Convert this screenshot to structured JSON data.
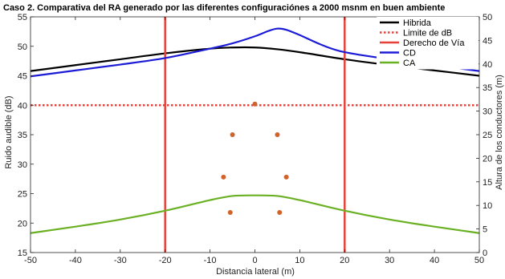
{
  "chart_data": {
    "type": "line",
    "title": "Caso 2. Comparativa del RA generado por las diferentes configuraciónes a 2000 msnm en buen ambiente",
    "xlabel": "Distancia lateral (m)",
    "ylabel": "Ruido audible (dB)",
    "y2label": "Altura de los conductores (m)",
    "xlim": [
      -50,
      50
    ],
    "ylim": [
      15,
      55
    ],
    "y2lim": [
      0,
      50
    ],
    "xticks": [
      -50,
      -40,
      -30,
      -20,
      -10,
      0,
      10,
      20,
      30,
      40,
      50
    ],
    "yticks": [
      15,
      20,
      25,
      30,
      35,
      40,
      45,
      50,
      55
    ],
    "y2ticks": [
      0,
      5,
      10,
      15,
      20,
      25,
      30,
      35,
      40,
      45,
      50
    ],
    "legend_position": "top-right",
    "grid": false,
    "series": [
      {
        "name": "Hibrida",
        "color": "#000000",
        "style": "solid",
        "x": [
          -50,
          -40,
          -30,
          -20,
          -10,
          -5,
          0,
          5,
          10,
          20,
          30,
          40,
          50
        ],
        "y": [
          45.8,
          46.8,
          47.8,
          48.8,
          49.6,
          49.8,
          49.8,
          49.5,
          49.0,
          47.8,
          46.8,
          45.9,
          45.0
        ]
      },
      {
        "name": "Limite de dB",
        "color": "#e8413a",
        "style": "dotted",
        "x": [
          -50,
          50
        ],
        "y": [
          40,
          40
        ]
      },
      {
        "name": "Derecho de Vía",
        "color": "#e8413a",
        "style": "vertical",
        "x": [
          -20,
          20
        ]
      },
      {
        "name": "CD",
        "color": "#1c1cd6",
        "style": "solid",
        "x": [
          -50,
          -40,
          -30,
          -20,
          -10,
          -5,
          0,
          3,
          5,
          7,
          10,
          15,
          20,
          30,
          40,
          50
        ],
        "y": [
          44.9,
          45.9,
          46.9,
          48.0,
          49.6,
          50.5,
          51.7,
          52.6,
          53.0,
          52.8,
          51.9,
          50.2,
          49.0,
          47.8,
          46.8,
          45.8
        ]
      },
      {
        "name": "CA",
        "color": "#6ab023",
        "style": "solid",
        "x": [
          -50,
          -40,
          -30,
          -20,
          -10,
          -5,
          0,
          5,
          10,
          20,
          30,
          40,
          50
        ],
        "y": [
          18.3,
          19.4,
          20.6,
          22.1,
          23.9,
          24.6,
          24.7,
          24.6,
          23.9,
          22.1,
          20.6,
          19.4,
          18.3
        ]
      }
    ],
    "conductors": {
      "axis": "y2",
      "color": "#d0622a",
      "points": [
        {
          "x": 0,
          "y": 31.5
        },
        {
          "x": -5,
          "y": 25
        },
        {
          "x": 5,
          "y": 25
        },
        {
          "x": -7,
          "y": 16
        },
        {
          "x": 7,
          "y": 16
        },
        {
          "x": -5.5,
          "y": 8.5
        },
        {
          "x": 5.5,
          "y": 8.5
        }
      ]
    }
  }
}
